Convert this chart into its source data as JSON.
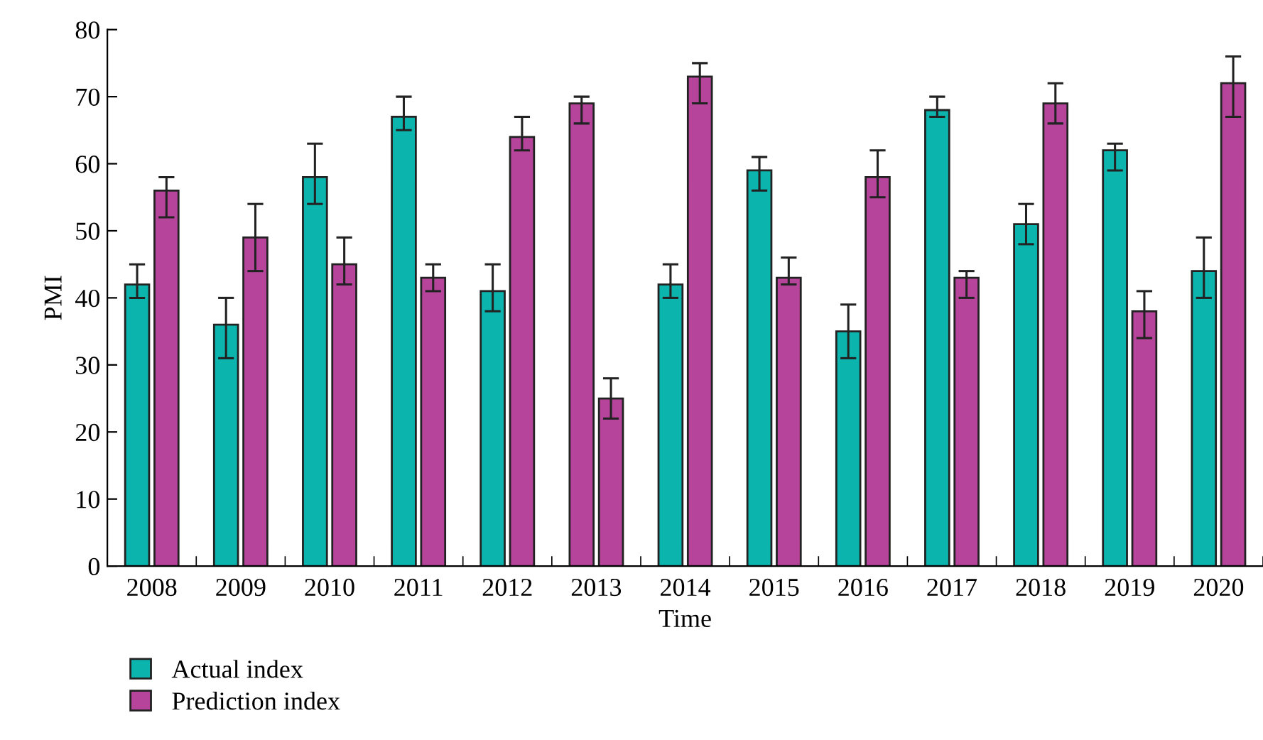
{
  "chart_data": {
    "type": "bar",
    "xlabel": "Time",
    "ylabel": "PMI",
    "categories": [
      "2008",
      "2009",
      "2010",
      "2011",
      "2012",
      "2013",
      "2014",
      "2015",
      "2016",
      "2017",
      "2018",
      "2019",
      "2020"
    ],
    "series": [
      {
        "name": "Actual index",
        "color": "#0bb5ad",
        "colors": [
          "#0bb5ad",
          "#0bb5ad",
          "#0bb5ad",
          "#0bb5ad",
          "#0bb5ad",
          "#b5449a",
          "#0bb5ad",
          "#0bb5ad",
          "#0bb5ad",
          "#0bb5ad",
          "#0bb5ad",
          "#0bb5ad",
          "#0bb5ad"
        ],
        "values": [
          42,
          36,
          58,
          67,
          41,
          69,
          42,
          59,
          35,
          68,
          51,
          62,
          44
        ],
        "errors": [
          [
            40,
            45
          ],
          [
            31,
            40
          ],
          [
            54,
            63
          ],
          [
            65,
            70
          ],
          [
            38,
            45
          ],
          [
            66,
            70
          ],
          [
            40,
            45
          ],
          [
            56,
            61
          ],
          [
            31,
            39
          ],
          [
            67,
            70
          ],
          [
            48,
            54
          ],
          [
            59,
            63
          ],
          [
            40,
            49
          ]
        ]
      },
      {
        "name": "Prediction index",
        "color": "#b5449a",
        "values": [
          56,
          49,
          45,
          43,
          64,
          25,
          73,
          43,
          58,
          43,
          69,
          38,
          72
        ],
        "errors": [
          [
            52,
            58
          ],
          [
            44,
            54
          ],
          [
            42,
            49
          ],
          [
            41,
            45
          ],
          [
            62,
            67
          ],
          [
            22,
            28
          ],
          [
            69,
            75
          ],
          [
            42,
            46
          ],
          [
            55,
            62
          ],
          [
            40,
            44
          ],
          [
            66,
            72
          ],
          [
            34,
            41
          ],
          [
            67,
            76
          ]
        ]
      }
    ],
    "ylim": [
      0,
      80
    ],
    "yticks": [
      0,
      10,
      20,
      30,
      40,
      50,
      60,
      70,
      80
    ],
    "grid": false,
    "legend": "bottom left"
  }
}
